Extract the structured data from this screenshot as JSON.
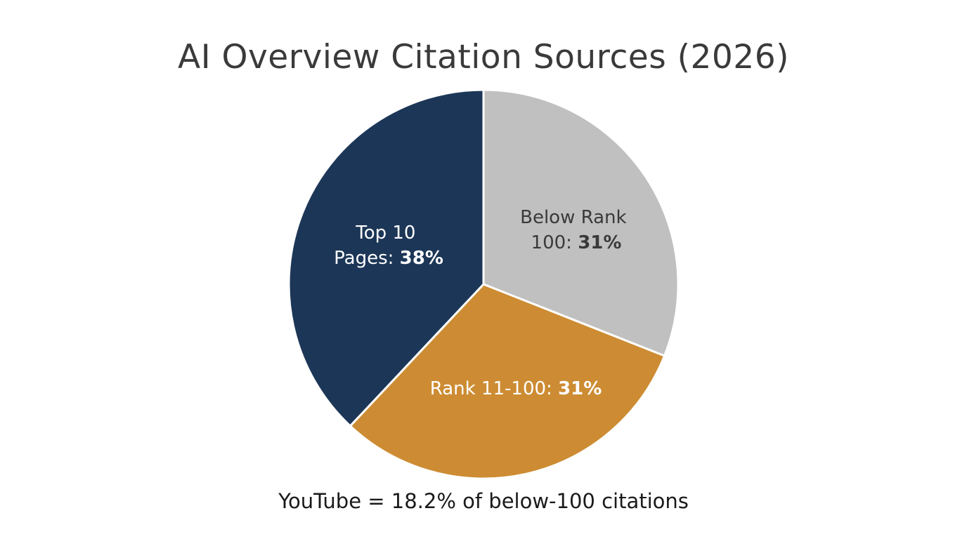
{
  "chart_data": {
    "type": "pie",
    "title": "AI Overview Citation Sources (2026)",
    "slices": [
      {
        "label_lines": [
          "Top 10",
          "Pages:"
        ],
        "value": 38,
        "value_label": "38%",
        "color": "#1c3657",
        "text_color": "#ffffff"
      },
      {
        "label_lines": [
          "Below Rank",
          "100:"
        ],
        "value": 31,
        "value_label": "31%",
        "color": "#c0c0c0",
        "text_color": "#3a3a3a"
      },
      {
        "label_lines": [
          "Rank 11-100:"
        ],
        "value": 31,
        "value_label": "31%",
        "color": "#cd8c33",
        "text_color": "#ffffff"
      }
    ],
    "annotation": "YouTube = 18.2% of below-100 citations"
  }
}
